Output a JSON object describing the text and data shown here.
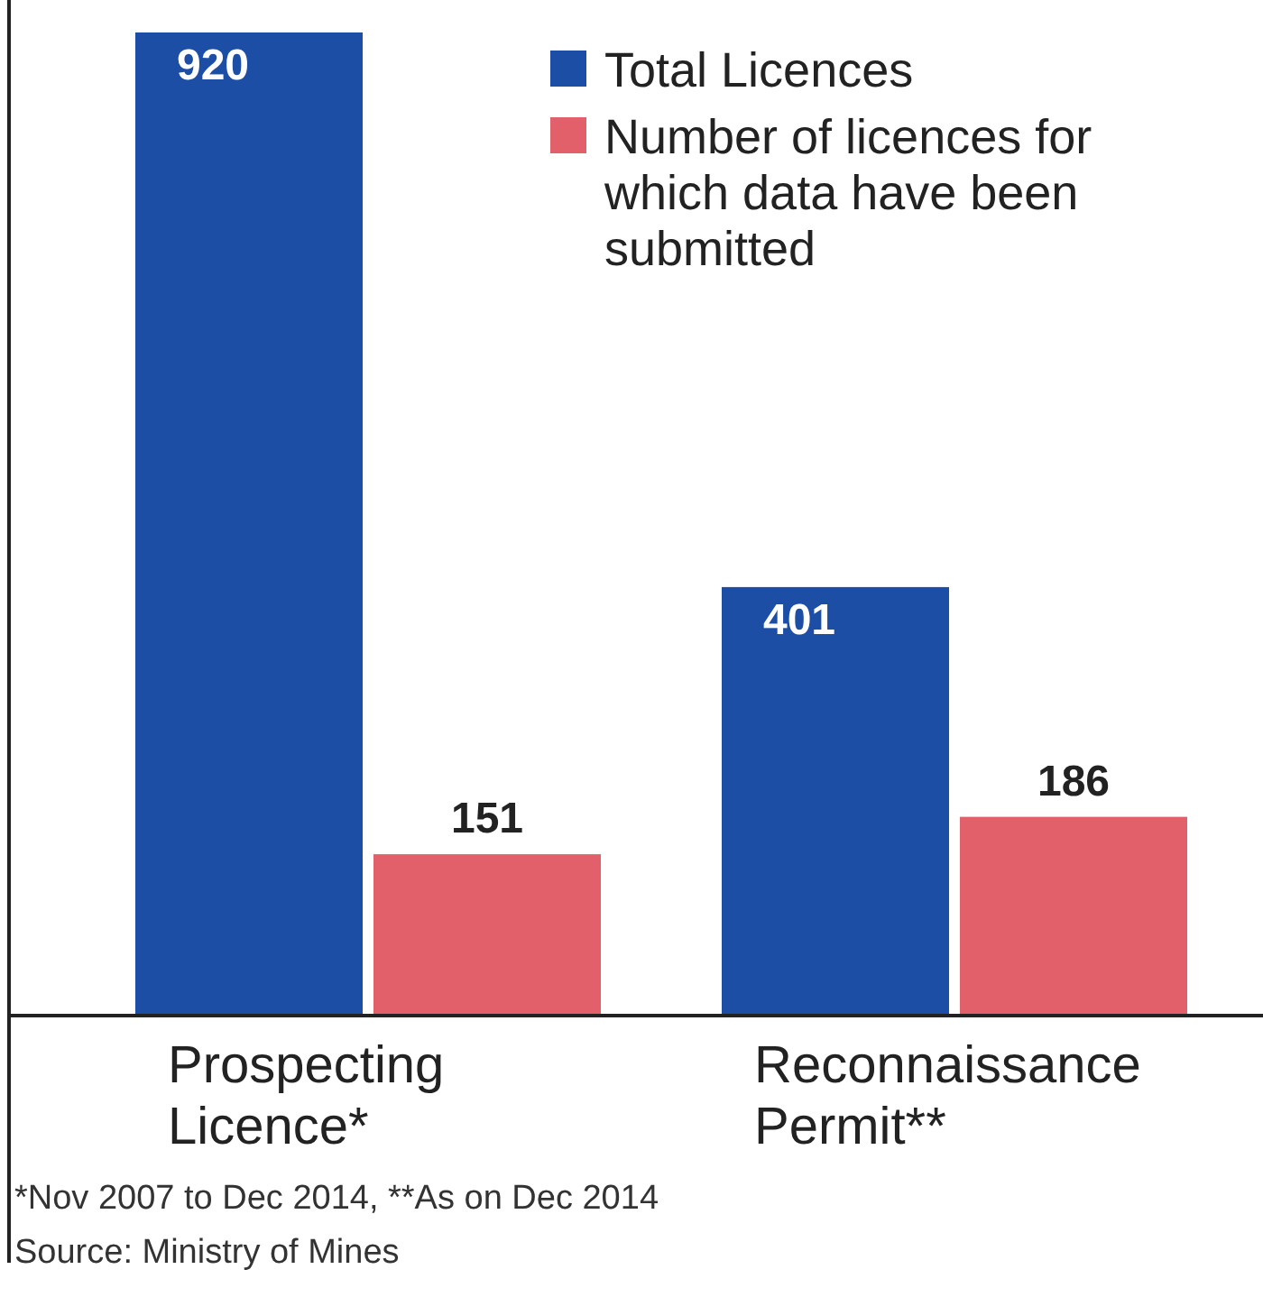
{
  "chart_data": {
    "type": "bar",
    "categories": [
      "Prospecting Licence*",
      "Reconnaissance Permit**"
    ],
    "series": [
      {
        "name": "Total Licences",
        "color": "#1d4ea6",
        "values": [
          920,
          401
        ]
      },
      {
        "name": "Number of licences for which data have been submitted",
        "color": "#e2606a",
        "values": [
          151,
          186
        ]
      }
    ],
    "data_labels": true,
    "legend": "top right",
    "annotations": [
      "*Nov 2007 to Dec 2014, **As on Dec 2014",
      "Source: Ministry of Mines"
    ]
  }
}
